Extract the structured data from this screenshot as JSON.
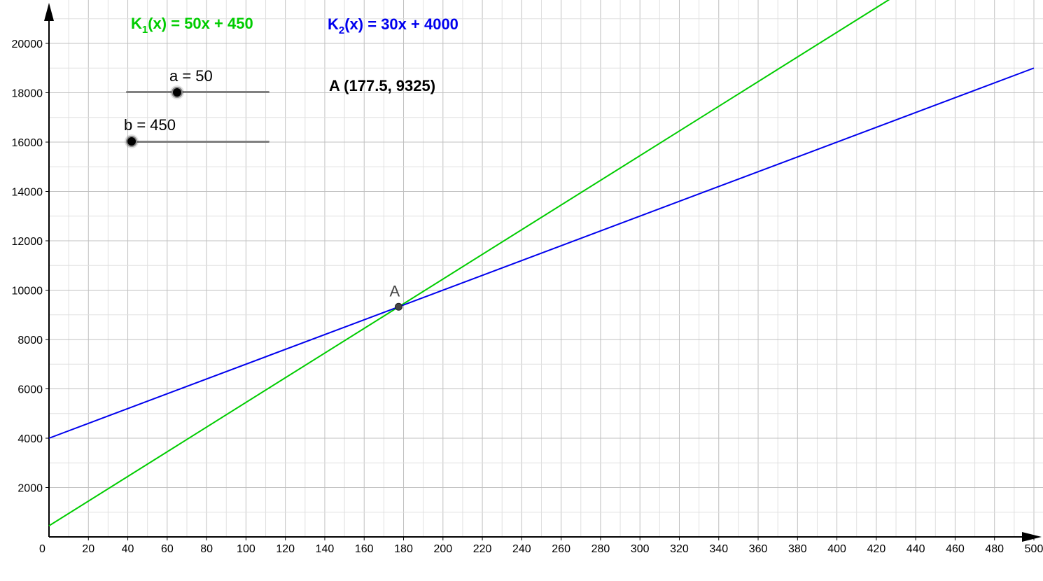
{
  "functions": {
    "k1": {
      "name": "K",
      "sub": "1",
      "rest": "(x) = 50x + 450",
      "color": "#00cc00"
    },
    "k2": {
      "name": "K",
      "sub": "2",
      "rest": "(x) = 30x + 4000",
      "color": "#0000ee"
    }
  },
  "sliders": {
    "a": {
      "label": "a = 50",
      "value": 50,
      "min": 0,
      "max": 200
    },
    "b": {
      "label": "b = 450",
      "value": 450,
      "min": 450,
      "max": 5000
    }
  },
  "intersection": {
    "text": "A (177.5, 9325)",
    "point_label": "A"
  },
  "chart_data": {
    "type": "line",
    "x_ticks": [
      0,
      20,
      40,
      60,
      80,
      100,
      120,
      140,
      160,
      180,
      200,
      220,
      240,
      260,
      280,
      300,
      320,
      340,
      360,
      380,
      400,
      420,
      440,
      460,
      480,
      500
    ],
    "y_ticks": [
      2000,
      4000,
      6000,
      8000,
      10000,
      12000,
      14000,
      16000,
      18000,
      20000
    ],
    "xlim": [
      0,
      500
    ],
    "ylim": [
      0,
      20500
    ],
    "grid": true,
    "series": [
      {
        "name": "K1(x) = 50x + 450",
        "slope": 50,
        "intercept": 450,
        "color": "#00cc00",
        "x": [
          0,
          500
        ],
        "y": [
          450,
          25450
        ]
      },
      {
        "name": "K2(x) = 30x + 4000",
        "slope": 30,
        "intercept": 4000,
        "color": "#0000ee",
        "x": [
          0,
          500
        ],
        "y": [
          4000,
          19000
        ]
      }
    ],
    "points": [
      {
        "label": "A",
        "x": 177.5,
        "y": 9325
      }
    ]
  }
}
